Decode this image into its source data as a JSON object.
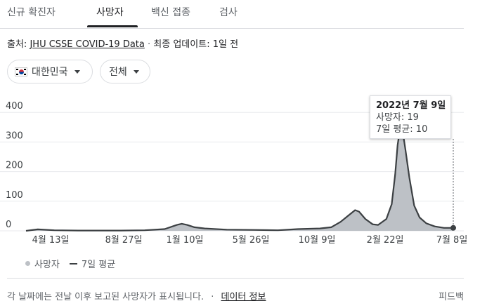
{
  "tabs": [
    "신규 확진자",
    "사망자",
    "백신 접종",
    "검사"
  ],
  "source": {
    "prefix": "출처:",
    "link": "JHU CSSE COVID-19 Data",
    "dot": "·",
    "updated": "최종 업데이트: 1일 전"
  },
  "filters": {
    "country": "대한민국",
    "range": "전체"
  },
  "tooltip": {
    "date": "2022년 7월 9일",
    "deaths": "사망자: 19",
    "avg": "7일 평균: 10"
  },
  "legend": {
    "bars": "사망자",
    "line": "7일 평균"
  },
  "footer": {
    "note": "각 날짜에는 전날 이후 보고된 사망자가 표시됩니다.",
    "dot": "·",
    "link": "데이터 정보",
    "feedback": "피드백"
  },
  "colors": {
    "bars": "#bdc1c6",
    "line": "#3c4043",
    "grid": "#e8eaed"
  },
  "chart_data": {
    "type": "area",
    "y_ticks": [
      0,
      100,
      200,
      300,
      400
    ],
    "ylim": [
      0,
      400
    ],
    "x_ticks": [
      "4월 13일",
      "8월 27일",
      "1월 10일",
      "5월 26일",
      "10월 9일",
      "2월 22일",
      "7월 8일"
    ],
    "x_range": [
      "2020-02-15",
      "2022-07-09"
    ],
    "avg_series": [
      {
        "x": "2020-02-15",
        "y": 0
      },
      {
        "x": "2020-03-10",
        "y": 5
      },
      {
        "x": "2020-04-13",
        "y": 2
      },
      {
        "x": "2020-06-01",
        "y": 1
      },
      {
        "x": "2020-08-27",
        "y": 1
      },
      {
        "x": "2020-10-15",
        "y": 2
      },
      {
        "x": "2020-11-25",
        "y": 6
      },
      {
        "x": "2020-12-20",
        "y": 20
      },
      {
        "x": "2020-12-30",
        "y": 24
      },
      {
        "x": "2021-01-10",
        "y": 20
      },
      {
        "x": "2021-01-25",
        "y": 12
      },
      {
        "x": "2021-02-15",
        "y": 8
      },
      {
        "x": "2021-04-01",
        "y": 4
      },
      {
        "x": "2021-05-26",
        "y": 3
      },
      {
        "x": "2021-07-15",
        "y": 2
      },
      {
        "x": "2021-08-25",
        "y": 6
      },
      {
        "x": "2021-10-09",
        "y": 8
      },
      {
        "x": "2021-11-01",
        "y": 12
      },
      {
        "x": "2021-11-20",
        "y": 30
      },
      {
        "x": "2021-12-05",
        "y": 50
      },
      {
        "x": "2021-12-20",
        "y": 70
      },
      {
        "x": "2021-12-28",
        "y": 65
      },
      {
        "x": "2022-01-10",
        "y": 40
      },
      {
        "x": "2022-01-25",
        "y": 22
      },
      {
        "x": "2022-02-05",
        "y": 20
      },
      {
        "x": "2022-02-22",
        "y": 40
      },
      {
        "x": "2022-03-05",
        "y": 90
      },
      {
        "x": "2022-03-12",
        "y": 190
      },
      {
        "x": "2022-03-17",
        "y": 290
      },
      {
        "x": "2022-03-22",
        "y": 345
      },
      {
        "x": "2022-03-28",
        "y": 330
      },
      {
        "x": "2022-04-02",
        "y": 275
      },
      {
        "x": "2022-04-10",
        "y": 180
      },
      {
        "x": "2022-04-20",
        "y": 85
      },
      {
        "x": "2022-05-01",
        "y": 45
      },
      {
        "x": "2022-05-15",
        "y": 25
      },
      {
        "x": "2022-06-01",
        "y": 15
      },
      {
        "x": "2022-06-20",
        "y": 10
      },
      {
        "x": "2022-07-09",
        "y": 10
      }
    ],
    "highlight": {
      "x": "2022-07-09",
      "deaths": 19,
      "avg": 10
    }
  }
}
